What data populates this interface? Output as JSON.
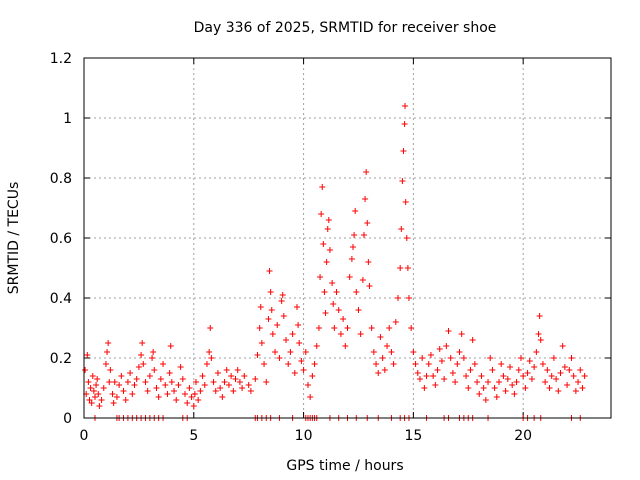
{
  "chart_data": {
    "type": "scatter",
    "title": "Day 336 of 2025, SRMTID for receiver shoe",
    "xlabel": "GPS time / hours",
    "ylabel": "SRMTID / TECUs",
    "xlim": [
      0,
      24
    ],
    "ylim": [
      0,
      1.2
    ],
    "xticks": [
      0,
      5,
      10,
      15,
      20
    ],
    "xtick_labels": [
      "0",
      "5",
      "10",
      "15",
      "20"
    ],
    "yticks": [
      0,
      0.2,
      0.4,
      0.6,
      0.8,
      1.0,
      1.2
    ],
    "ytick_labels": [
      "0",
      "0.2",
      "0.4",
      "0.6",
      "0.8",
      "1",
      "1.2"
    ],
    "grid": true,
    "marker": "+",
    "series": [
      {
        "name": "SRMTID",
        "color": "#ff0000",
        "points": [
          [
            0.05,
            0.16
          ],
          [
            0.1,
            0.08
          ],
          [
            0.15,
            0.21
          ],
          [
            0.2,
            0.12
          ],
          [
            0.25,
            0.06
          ],
          [
            0.3,
            0.1
          ],
          [
            0.35,
            0.05
          ],
          [
            0.4,
            0.14
          ],
          [
            0.45,
            0.09
          ],
          [
            0.5,
            0.07
          ],
          [
            0.55,
            0.11
          ],
          [
            0.6,
            0.13
          ],
          [
            0.65,
            0.08
          ],
          [
            0.7,
            0.04
          ],
          [
            0.8,
            0.06
          ],
          [
            0.9,
            0.1
          ],
          [
            1.0,
            0.18
          ],
          [
            1.05,
            0.22
          ],
          [
            1.1,
            0.25
          ],
          [
            1.15,
            0.12
          ],
          [
            1.2,
            0.16
          ],
          [
            1.3,
            0.08
          ],
          [
            1.35,
            0.05
          ],
          [
            1.4,
            0.12
          ],
          [
            1.5,
            0.07
          ],
          [
            1.6,
            0.11
          ],
          [
            1.7,
            0.14
          ],
          [
            1.8,
            0.09
          ],
          [
            1.9,
            0.06
          ],
          [
            2.0,
            0.12
          ],
          [
            2.1,
            0.15
          ],
          [
            2.2,
            0.08
          ],
          [
            2.3,
            0.11
          ],
          [
            2.4,
            0.13
          ],
          [
            2.5,
            0.17
          ],
          [
            2.6,
            0.21
          ],
          [
            2.65,
            0.25
          ],
          [
            2.7,
            0.18
          ],
          [
            2.8,
            0.12
          ],
          [
            2.9,
            0.09
          ],
          [
            3.0,
            0.14
          ],
          [
            3.1,
            0.2
          ],
          [
            3.15,
            0.22
          ],
          [
            3.2,
            0.16
          ],
          [
            3.3,
            0.1
          ],
          [
            3.4,
            0.07
          ],
          [
            3.5,
            0.13
          ],
          [
            3.6,
            0.18
          ],
          [
            3.7,
            0.11
          ],
          [
            3.8,
            0.08
          ],
          [
            3.9,
            0.15
          ],
          [
            3.95,
            0.24
          ],
          [
            4.0,
            0.12
          ],
          [
            4.1,
            0.09
          ],
          [
            4.2,
            0.06
          ],
          [
            4.3,
            0.11
          ],
          [
            4.4,
            0.17
          ],
          [
            4.5,
            0.13
          ],
          [
            4.6,
            0.08
          ],
          [
            4.7,
            0.05
          ],
          [
            4.8,
            0.1
          ],
          [
            4.9,
            0.07
          ],
          [
            5.0,
            0.04
          ],
          [
            5.05,
            0.08
          ],
          [
            5.1,
            0.12
          ],
          [
            5.2,
            0.06
          ],
          [
            5.3,
            0.09
          ],
          [
            5.4,
            0.14
          ],
          [
            5.5,
            0.11
          ],
          [
            5.6,
            0.18
          ],
          [
            5.7,
            0.22
          ],
          [
            5.75,
            0.3
          ],
          [
            5.8,
            0.2
          ],
          [
            5.9,
            0.12
          ],
          [
            6.0,
            0.09
          ],
          [
            6.1,
            0.15
          ],
          [
            6.2,
            0.1
          ],
          [
            6.3,
            0.07
          ],
          [
            6.4,
            0.12
          ],
          [
            6.5,
            0.16
          ],
          [
            6.6,
            0.11
          ],
          [
            6.7,
            0.14
          ],
          [
            6.8,
            0.09
          ],
          [
            6.9,
            0.13
          ],
          [
            7.0,
            0.16
          ],
          [
            7.1,
            0.12
          ],
          [
            7.2,
            0.1
          ],
          [
            7.3,
            0.14
          ],
          [
            7.5,
            0.11
          ],
          [
            7.6,
            0.09
          ],
          [
            7.8,
            0.13
          ],
          [
            7.9,
            0.21
          ],
          [
            8.0,
            0.3
          ],
          [
            8.05,
            0.37
          ],
          [
            8.1,
            0.25
          ],
          [
            8.2,
            0.18
          ],
          [
            8.3,
            0.12
          ],
          [
            8.4,
            0.33
          ],
          [
            8.45,
            0.49
          ],
          [
            8.5,
            0.42
          ],
          [
            8.55,
            0.36
          ],
          [
            8.6,
            0.28
          ],
          [
            8.7,
            0.22
          ],
          [
            8.8,
            0.31
          ],
          [
            8.9,
            0.2
          ],
          [
            9.0,
            0.39
          ],
          [
            9.05,
            0.41
          ],
          [
            9.1,
            0.34
          ],
          [
            9.2,
            0.26
          ],
          [
            9.3,
            0.18
          ],
          [
            9.4,
            0.22
          ],
          [
            9.5,
            0.28
          ],
          [
            9.6,
            0.15
          ],
          [
            9.7,
            0.37
          ],
          [
            9.75,
            0.31
          ],
          [
            9.8,
            0.25
          ],
          [
            9.9,
            0.19
          ],
          [
            10.0,
            0.16
          ],
          [
            10.1,
            0.22
          ],
          [
            10.2,
            0.11
          ],
          [
            10.3,
            0.07
          ],
          [
            10.4,
            0.14
          ],
          [
            10.5,
            0.18
          ],
          [
            10.6,
            0.24
          ],
          [
            10.7,
            0.3
          ],
          [
            10.75,
            0.47
          ],
          [
            10.8,
            0.68
          ],
          [
            10.85,
            0.77
          ],
          [
            10.9,
            0.58
          ],
          [
            10.95,
            0.42
          ],
          [
            11.0,
            0.35
          ],
          [
            11.05,
            0.52
          ],
          [
            11.1,
            0.63
          ],
          [
            11.15,
            0.66
          ],
          [
            11.2,
            0.56
          ],
          [
            11.3,
            0.45
          ],
          [
            11.35,
            0.38
          ],
          [
            11.4,
            0.3
          ],
          [
            11.5,
            0.42
          ],
          [
            11.6,
            0.36
          ],
          [
            11.7,
            0.28
          ],
          [
            11.8,
            0.33
          ],
          [
            11.9,
            0.24
          ],
          [
            12.0,
            0.3
          ],
          [
            12.1,
            0.47
          ],
          [
            12.2,
            0.53
          ],
          [
            12.25,
            0.57
          ],
          [
            12.3,
            0.61
          ],
          [
            12.35,
            0.69
          ],
          [
            12.4,
            0.42
          ],
          [
            12.5,
            0.36
          ],
          [
            12.6,
            0.28
          ],
          [
            12.7,
            0.46
          ],
          [
            12.75,
            0.61
          ],
          [
            12.8,
            0.73
          ],
          [
            12.85,
            0.82
          ],
          [
            12.9,
            0.65
          ],
          [
            12.95,
            0.52
          ],
          [
            13.0,
            0.44
          ],
          [
            13.1,
            0.3
          ],
          [
            13.2,
            0.22
          ],
          [
            13.3,
            0.18
          ],
          [
            13.4,
            0.15
          ],
          [
            13.5,
            0.27
          ],
          [
            13.6,
            0.2
          ],
          [
            13.7,
            0.16
          ],
          [
            13.8,
            0.24
          ],
          [
            13.9,
            0.3
          ],
          [
            14.0,
            0.22
          ],
          [
            14.1,
            0.18
          ],
          [
            14.2,
            0.32
          ],
          [
            14.3,
            0.4
          ],
          [
            14.4,
            0.5
          ],
          [
            14.45,
            0.63
          ],
          [
            14.5,
            0.79
          ],
          [
            14.55,
            0.89
          ],
          [
            14.6,
            0.98
          ],
          [
            14.62,
            1.04
          ],
          [
            14.65,
            0.72
          ],
          [
            14.7,
            0.6
          ],
          [
            14.75,
            0.5
          ],
          [
            14.8,
            0.4
          ],
          [
            14.9,
            0.3
          ],
          [
            15.0,
            0.22
          ],
          [
            15.1,
            0.18
          ],
          [
            15.2,
            0.15
          ],
          [
            15.3,
            0.13
          ],
          [
            15.4,
            0.2
          ],
          [
            15.5,
            0.1
          ],
          [
            15.6,
            0.14
          ],
          [
            15.7,
            0.18
          ],
          [
            15.8,
            0.21
          ],
          [
            15.9,
            0.14
          ],
          [
            16.0,
            0.11
          ],
          [
            16.1,
            0.16
          ],
          [
            16.2,
            0.23
          ],
          [
            16.3,
            0.19
          ],
          [
            16.4,
            0.13
          ],
          [
            16.5,
            0.24
          ],
          [
            16.6,
            0.29
          ],
          [
            16.7,
            0.2
          ],
          [
            16.8,
            0.15
          ],
          [
            16.9,
            0.12
          ],
          [
            17.0,
            0.18
          ],
          [
            17.1,
            0.22
          ],
          [
            17.2,
            0.28
          ],
          [
            17.3,
            0.2
          ],
          [
            17.4,
            0.14
          ],
          [
            17.5,
            0.1
          ],
          [
            17.6,
            0.16
          ],
          [
            17.7,
            0.26
          ],
          [
            17.8,
            0.18
          ],
          [
            17.9,
            0.12
          ],
          [
            18.0,
            0.08
          ],
          [
            18.1,
            0.14
          ],
          [
            18.2,
            0.1
          ],
          [
            18.3,
            0.06
          ],
          [
            18.4,
            0.12
          ],
          [
            18.5,
            0.2
          ],
          [
            18.6,
            0.16
          ],
          [
            18.7,
            0.1
          ],
          [
            18.8,
            0.07
          ],
          [
            18.9,
            0.12
          ],
          [
            19.0,
            0.18
          ],
          [
            19.1,
            0.14
          ],
          [
            19.2,
            0.09
          ],
          [
            19.3,
            0.13
          ],
          [
            19.4,
            0.17
          ],
          [
            19.5,
            0.11
          ],
          [
            19.6,
            0.08
          ],
          [
            19.7,
            0.12
          ],
          [
            19.8,
            0.16
          ],
          [
            19.9,
            0.2
          ],
          [
            20.0,
            0.14
          ],
          [
            20.1,
            0.1
          ],
          [
            20.2,
            0.15
          ],
          [
            20.3,
            0.19
          ],
          [
            20.4,
            0.13
          ],
          [
            20.5,
            0.17
          ],
          [
            20.6,
            0.22
          ],
          [
            20.7,
            0.28
          ],
          [
            20.75,
            0.34
          ],
          [
            20.8,
            0.26
          ],
          [
            20.9,
            0.18
          ],
          [
            21.0,
            0.12
          ],
          [
            21.1,
            0.16
          ],
          [
            21.2,
            0.1
          ],
          [
            21.3,
            0.14
          ],
          [
            21.4,
            0.2
          ],
          [
            21.5,
            0.13
          ],
          [
            21.6,
            0.09
          ],
          [
            21.7,
            0.15
          ],
          [
            21.8,
            0.24
          ],
          [
            21.9,
            0.17
          ],
          [
            22.0,
            0.11
          ],
          [
            22.1,
            0.16
          ],
          [
            22.2,
            0.2
          ],
          [
            22.3,
            0.14
          ],
          [
            22.4,
            0.09
          ],
          [
            22.5,
            0.12
          ],
          [
            22.6,
            0.16
          ],
          [
            22.7,
            0.1
          ],
          [
            22.8,
            0.14
          ]
        ]
      }
    ],
    "zero_band_x": [
      0.5,
      1.5,
      1.6,
      1.8,
      2.0,
      2.2,
      2.4,
      2.6,
      2.8,
      3.0,
      3.2,
      3.4,
      3.6,
      4.5,
      4.7,
      7.8,
      7.9,
      8.1,
      8.3,
      8.5,
      8.9,
      9.5,
      10.1,
      10.2,
      10.3,
      10.4,
      10.5,
      10.6,
      11.2,
      11.6,
      12.0,
      12.4,
      12.9,
      13.4,
      14.0,
      14.4,
      14.6,
      14.8,
      15.6,
      16.4,
      16.6,
      17.1,
      17.3,
      17.5,
      17.7,
      18.4,
      20.0,
      20.2,
      20.5,
      20.8,
      22.2,
      22.6
    ]
  }
}
